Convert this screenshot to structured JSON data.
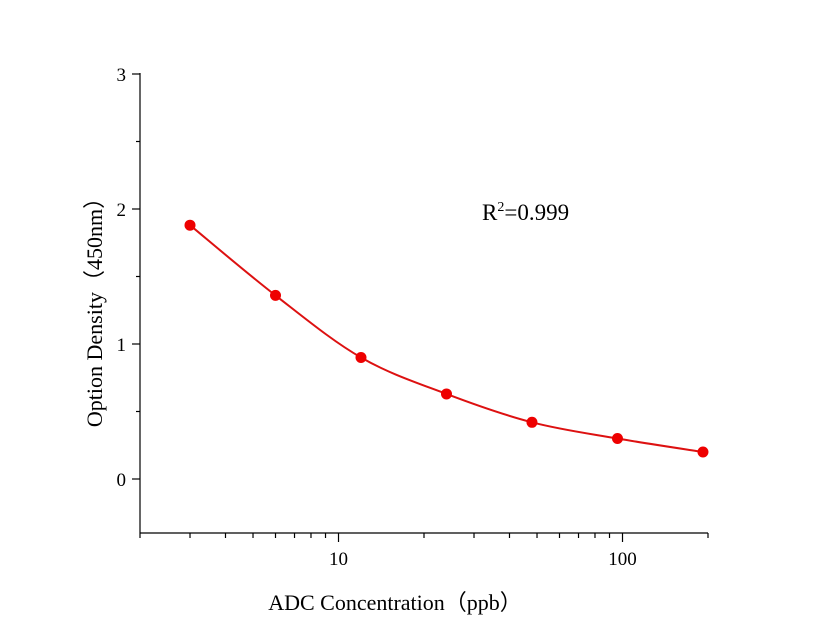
{
  "chart_data": {
    "type": "scatter",
    "x_scale": "log",
    "x": [
      3,
      6,
      12,
      24,
      48,
      96,
      192
    ],
    "y": [
      1.88,
      1.36,
      0.9,
      0.63,
      0.42,
      0.3,
      0.2
    ],
    "xlim": [
      2,
      200
    ],
    "ylim": [
      -0.4,
      3
    ],
    "x_major_ticks": [
      10,
      100
    ],
    "x_tick_labels": [
      "10",
      "100"
    ],
    "y_ticks": [
      0,
      1,
      2,
      3
    ],
    "y_tick_labels": [
      "0",
      "1",
      "2",
      "3"
    ],
    "xlabel": "ADC Concentration（ppb）",
    "ylabel": "Option Density（450nm）",
    "annotation": {
      "base": "R",
      "sup": "2",
      "rest": "=0.999"
    },
    "fit_curve": true,
    "grid": false,
    "legend": false,
    "colors": {
      "points": "#ee0000",
      "curve": "#dd1111",
      "axes": "#000000"
    }
  }
}
